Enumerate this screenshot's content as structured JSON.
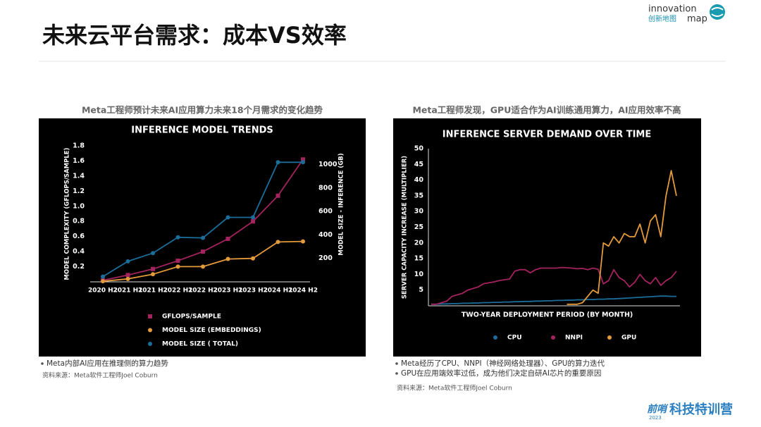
{
  "header": {
    "title": "未来云平台需求：成本VS效率",
    "logo_en_1": "innovation",
    "logo_en_2": "map",
    "logo_cn": "创新地图"
  },
  "panels": [
    {
      "caption": "Meta工程师预计未来AI应用算力未来18个月需求的变化趋势",
      "bullets": [
        "Meta内部AI应用在推理侧的算力趋势"
      ],
      "source": "资料来源：Meta软件工程师Joel Coburn"
    },
    {
      "caption": "Meta工程师发现，GPU适合作为AI训练通用算力，AI应用效率不高",
      "bullets": [
        "Meta经历了CPU、NNPI（神经网络处理器）、GPU的算力迭代",
        "GPU在应用端效率过低，成为他们决定自研AI芯片的重要原因"
      ],
      "source": "资料来源：Meta软件工程师Joel Coburn"
    }
  ],
  "chart_data": [
    {
      "type": "line",
      "title": "INFERENCE MODEL TRENDS",
      "y_label": "MODEL COMPLEXITY (GFLOPS/SAMPLE)",
      "y2_label": "MODEL SIZE - INFERENCE (GB)",
      "categories": [
        "2020 H2",
        "2021 H1",
        "2021 H2",
        "2022 H1",
        "2022 H2",
        "2023 H1",
        "2023 H2",
        "2024 H1",
        "2024 H2"
      ],
      "ylim": [
        0,
        1.8
      ],
      "yticks": [
        0.2,
        0.4,
        0.6,
        0.8,
        {
          "value": 1,
          "label": "1.0"
        },
        1.2,
        1.4,
        1.6,
        1.8
      ],
      "y2lim": [
        0,
        1160
      ],
      "y2ticks": [
        200,
        400,
        600,
        800,
        1000
      ],
      "legend": "bottom",
      "series": [
        {
          "name": "GFLOPS/SAMPLE",
          "color": "#a3235e",
          "marker": "square",
          "values": [
            0.02,
            0.09,
            0.17,
            0.28,
            0.4,
            0.57,
            0.8,
            1.14,
            1.62
          ]
        },
        {
          "name": "MODEL SIZE (EMBEDDINGS)",
          "color": "#e39a3b",
          "marker": "circle",
          "axis": "y2",
          "values": [
            5,
            25,
            65,
            130,
            130,
            195,
            200,
            340,
            345
          ]
        },
        {
          "name": "MODEL SIZE ( TOTAL)",
          "color": "#1b6d9a",
          "marker": "circle",
          "axis": "y2",
          "values": [
            45,
            175,
            245,
            380,
            375,
            550,
            550,
            1020,
            1020
          ]
        }
      ]
    },
    {
      "type": "line",
      "title": "INFERENCE SERVER DEMAND OVER TIME",
      "y_label": "SERVER CAPACITY INCREASE (MULTIPLIER)",
      "x_label": "TWO-YEAR DEPLOYMENT PERIOD (BY MONTH)",
      "categories": [
        null,
        null,
        null,
        null,
        null,
        null,
        null,
        null,
        null,
        null,
        null,
        null,
        null,
        null,
        null,
        null,
        null,
        null,
        null,
        null,
        null,
        null,
        null,
        null,
        null,
        null,
        null,
        null,
        null,
        null,
        null,
        null,
        null,
        null,
        null,
        null,
        null,
        null,
        null,
        null,
        null,
        null,
        null,
        null,
        null,
        null,
        null,
        null
      ],
      "ylim": [
        0,
        50
      ],
      "yticks": [
        5,
        10,
        15,
        20,
        25,
        30,
        35,
        40,
        45,
        50
      ],
      "legend": "bottom",
      "series": [
        {
          "name": "CPU",
          "color": "#1b6d9a",
          "values": [
            0.5,
            0.5,
            0.6,
            0.6,
            0.7,
            0.7,
            0.8,
            0.8,
            0.9,
            0.9,
            1,
            1,
            1.1,
            1.1,
            1.2,
            1.2,
            1.3,
            1.3,
            1.4,
            1.4,
            1.5,
            1.5,
            1.6,
            1.6,
            1.7,
            1.7,
            1.8,
            1.8,
            1.9,
            1.9,
            2,
            2,
            2.1,
            2.1,
            2.2,
            2.2,
            2.3,
            2.4,
            2.5,
            2.6,
            2.7,
            2.8,
            2.9,
            3,
            3.1,
            3.1,
            3,
            3
          ]
        },
        {
          "name": "NNPI",
          "color": "#a3235e",
          "values": [
            0.5,
            0.5,
            1,
            1.5,
            3,
            3.5,
            4,
            5,
            5.5,
            6,
            7,
            7.3,
            7.6,
            8,
            8.3,
            8.5,
            11,
            11.5,
            11.5,
            10.5,
            11.5,
            12,
            12,
            12,
            12,
            12.2,
            12.1,
            12,
            11.8,
            11.9,
            11.5,
            12,
            11.6,
            7,
            8,
            11.5,
            9,
            8,
            6,
            7.5,
            10,
            8,
            7,
            9,
            6.5,
            8,
            9,
            11
          ]
        },
        {
          "name": "GPU",
          "color": "#e39a3b",
          "values": [
            null,
            null,
            null,
            null,
            null,
            null,
            null,
            null,
            null,
            null,
            null,
            null,
            null,
            null,
            null,
            null,
            null,
            null,
            null,
            null,
            null,
            null,
            null,
            null,
            null,
            null,
            0.5,
            0.5,
            0.5,
            1,
            3,
            5,
            4,
            20,
            19,
            22,
            20,
            23,
            22,
            22,
            26,
            20,
            27,
            29,
            22,
            35,
            43,
            35
          ]
        }
      ]
    }
  ],
  "footer": {
    "brand_1": "前哨",
    "brand_year": "2023",
    "brand_2": "科技特训营"
  }
}
